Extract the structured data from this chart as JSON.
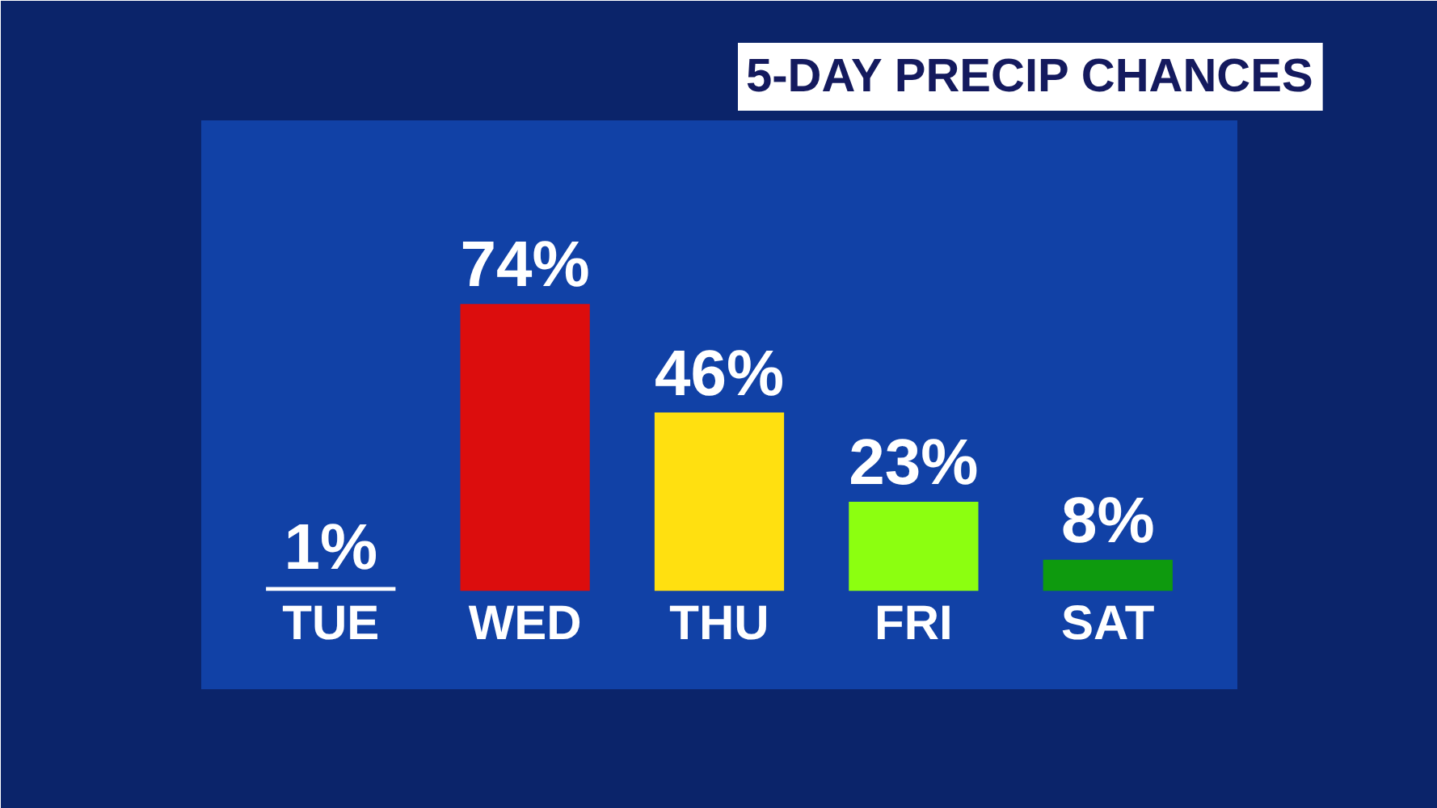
{
  "chart_data": {
    "type": "bar",
    "title": "5-DAY PRECIP CHANCES",
    "categories": [
      "TUE",
      "WED",
      "THU",
      "FRI",
      "SAT"
    ],
    "values": [
      1,
      74,
      46,
      23,
      8
    ],
    "colors": [
      "#ffffff",
      "#dc0d0d",
      "#ffe010",
      "#8cff10",
      "#0e9a0e"
    ],
    "value_labels": [
      "1%",
      "74%",
      "46%",
      "23%",
      "8%"
    ]
  }
}
